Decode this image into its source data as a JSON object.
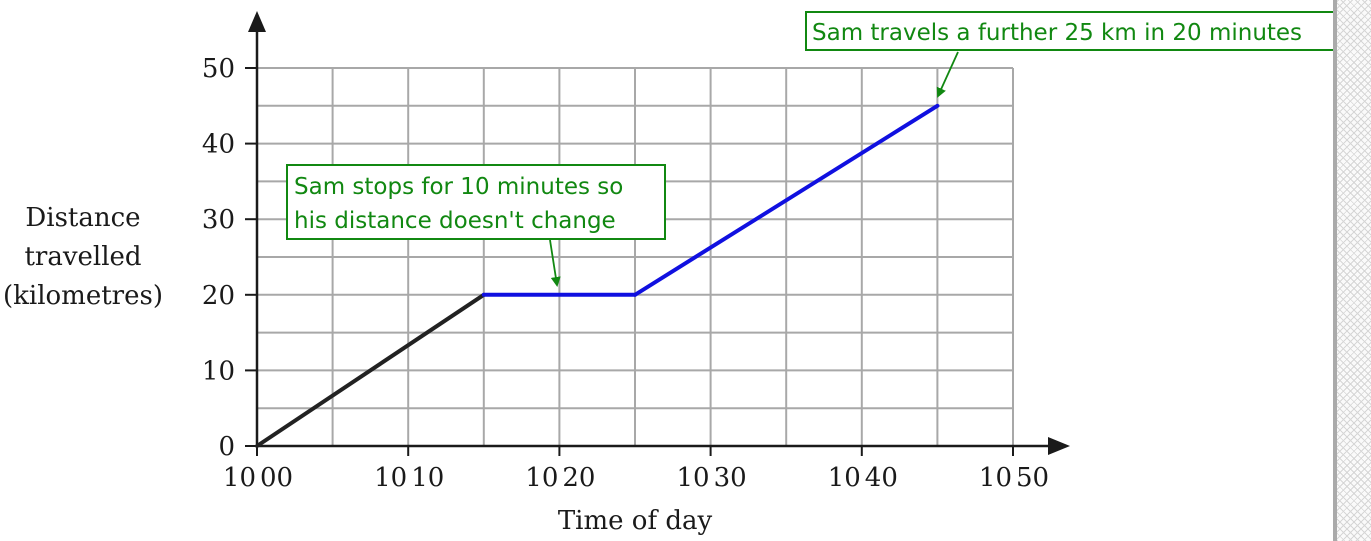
{
  "chart_data": {
    "type": "line",
    "xlabel": "Time of day",
    "ylabel_lines": [
      "Distance",
      "travelled",
      "(kilometres)"
    ],
    "x_ticks": [
      {
        "minutes": 0,
        "label_h": "10",
        "label_m": "00"
      },
      {
        "minutes": 10,
        "label_h": "10",
        "label_m": "10"
      },
      {
        "minutes": 20,
        "label_h": "10",
        "label_m": "20"
      },
      {
        "minutes": 30,
        "label_h": "10",
        "label_m": "30"
      },
      {
        "minutes": 40,
        "label_h": "10",
        "label_m": "40"
      },
      {
        "minutes": 50,
        "label_h": "10",
        "label_m": "50"
      }
    ],
    "y_ticks": [
      "0",
      "10",
      "20",
      "30",
      "40",
      "50"
    ],
    "xlim_minutes_after_1000": [
      0,
      50
    ],
    "ylim": [
      0,
      50
    ],
    "grid": true,
    "segments": [
      {
        "id": "first-leg",
        "color": "#222222",
        "points": [
          [
            0,
            0
          ],
          [
            15,
            20
          ]
        ]
      },
      {
        "id": "stop",
        "color": "#1010e0",
        "points": [
          [
            15,
            20
          ],
          [
            25,
            20
          ]
        ]
      },
      {
        "id": "second-leg",
        "color": "#1010e0",
        "points": [
          [
            25,
            20
          ],
          [
            45,
            45
          ]
        ]
      }
    ],
    "annotations": [
      {
        "id": "stop-note",
        "lines": [
          "Sam stops for 10 minutes so",
          "his distance doesn't change"
        ],
        "color": "#118811"
      },
      {
        "id": "further-note",
        "lines": [
          "Sam travels a further 25 km in 20 minutes"
        ],
        "color": "#118811"
      }
    ]
  }
}
